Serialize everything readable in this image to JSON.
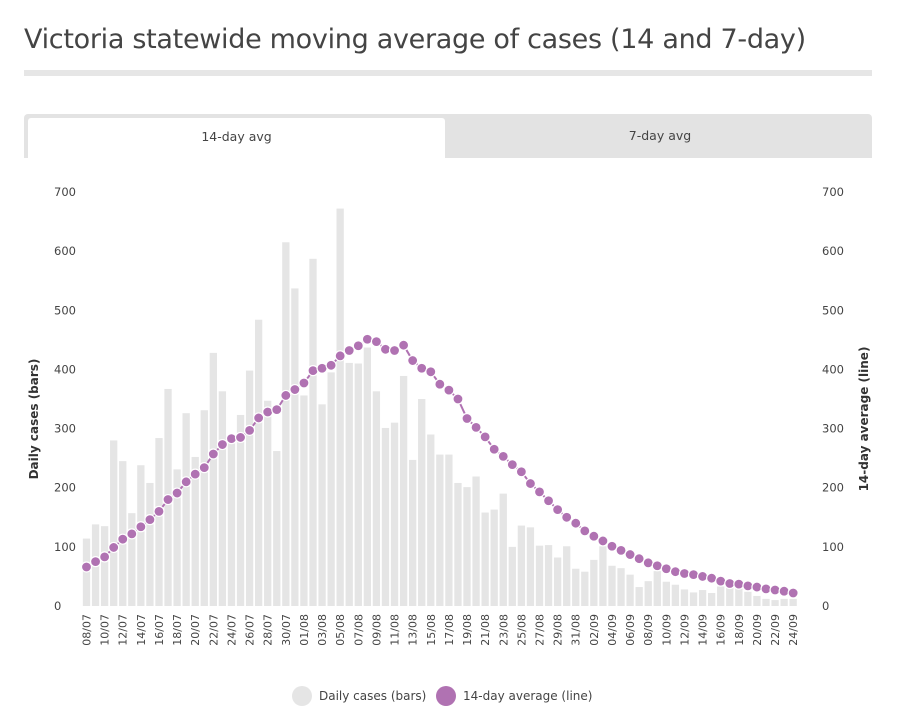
{
  "title": "Victoria statewide moving average of cases (14 and 7-day)",
  "tabs": [
    {
      "label": "14-day avg",
      "active": true
    },
    {
      "label": "7-day avg",
      "active": false
    }
  ],
  "legend": {
    "bars_label": "Daily cases (bars)",
    "line_label": "14-day average (line)"
  },
  "colors": {
    "bars": "#e5e5e5",
    "line": "#b072b2"
  },
  "chart_data": {
    "type": "bar+line",
    "title": "Victoria statewide moving average of cases (14 and 7-day)",
    "ylabel_left": "Daily cases (bars)",
    "ylabel_right": "14-day average (line)",
    "ylim": [
      0,
      700
    ],
    "yticks": [
      0,
      100,
      200,
      300,
      400,
      500,
      600,
      700
    ],
    "x_tick_labels": [
      "08/07",
      "10/07",
      "12/07",
      "14/07",
      "16/07",
      "18/07",
      "20/07",
      "22/07",
      "24/07",
      "26/07",
      "28/07",
      "30/07",
      "01/08",
      "03/08",
      "05/08",
      "07/08",
      "09/08",
      "11/08",
      "13/08",
      "15/08",
      "17/08",
      "19/08",
      "21/08",
      "23/08",
      "25/08",
      "27/08",
      "29/08",
      "31/08",
      "02/09",
      "04/09",
      "06/09",
      "08/09",
      "10/09",
      "12/09",
      "14/09",
      "16/09",
      "18/09",
      "20/09",
      "22/09",
      "24/09"
    ],
    "categories": [
      "08/07",
      "09/07",
      "10/07",
      "11/07",
      "12/07",
      "13/07",
      "14/07",
      "15/07",
      "16/07",
      "17/07",
      "18/07",
      "19/07",
      "20/07",
      "21/07",
      "22/07",
      "23/07",
      "24/07",
      "25/07",
      "26/07",
      "27/07",
      "28/07",
      "29/07",
      "30/07",
      "31/07",
      "01/08",
      "02/08",
      "03/08",
      "04/08",
      "05/08",
      "06/08",
      "07/08",
      "08/08",
      "09/08",
      "10/08",
      "11/08",
      "12/08",
      "13/08",
      "14/08",
      "15/08",
      "16/08",
      "17/08",
      "18/08",
      "19/08",
      "20/08",
      "21/08",
      "22/08",
      "23/08",
      "24/08",
      "25/08",
      "26/08",
      "27/08",
      "28/08",
      "29/08",
      "30/08",
      "31/08",
      "01/09",
      "02/09",
      "03/09",
      "04/09",
      "05/09",
      "06/09",
      "07/09",
      "08/09",
      "09/09",
      "10/09",
      "11/09",
      "12/09",
      "13/09",
      "14/09",
      "15/09",
      "16/09",
      "17/09",
      "18/09",
      "19/09",
      "20/09",
      "21/09",
      "22/09",
      "23/09",
      "24/09"
    ],
    "series": [
      {
        "name": "Daily cases (bars)",
        "type": "bar",
        "values": [
          114,
          138,
          135,
          280,
          245,
          157,
          238,
          208,
          284,
          367,
          231,
          326,
          252,
          331,
          428,
          363,
          275,
          323,
          398,
          484,
          347,
          262,
          615,
          537,
          356,
          587,
          341,
          395,
          672,
          411,
          410,
          437,
          363,
          301,
          310,
          389,
          247,
          350,
          290,
          256,
          256,
          208,
          201,
          219,
          158,
          163,
          190,
          100,
          136,
          133,
          102,
          103,
          82,
          101,
          63,
          58,
          78,
          101,
          68,
          64,
          53,
          32,
          42,
          59,
          41,
          36,
          28,
          23,
          27,
          22,
          33,
          34,
          30,
          24,
          17,
          12,
          10,
          12,
          12
        ]
      },
      {
        "name": "14-day average (line)",
        "type": "line",
        "values": [
          66,
          75,
          83,
          99,
          113,
          122,
          134,
          146,
          160,
          180,
          191,
          210,
          223,
          234,
          257,
          273,
          283,
          285,
          297,
          318,
          328,
          332,
          356,
          366,
          377,
          398,
          402,
          407,
          423,
          432,
          440,
          451,
          447,
          434,
          432,
          441,
          415,
          402,
          396,
          375,
          365,
          350,
          317,
          302,
          286,
          265,
          253,
          239,
          227,
          207,
          193,
          178,
          163,
          150,
          140,
          127,
          118,
          110,
          101,
          94,
          87,
          80,
          73,
          68,
          63,
          58,
          55,
          53,
          50,
          47,
          42,
          38,
          37,
          34,
          32,
          29,
          27,
          25,
          22
        ]
      }
    ]
  }
}
